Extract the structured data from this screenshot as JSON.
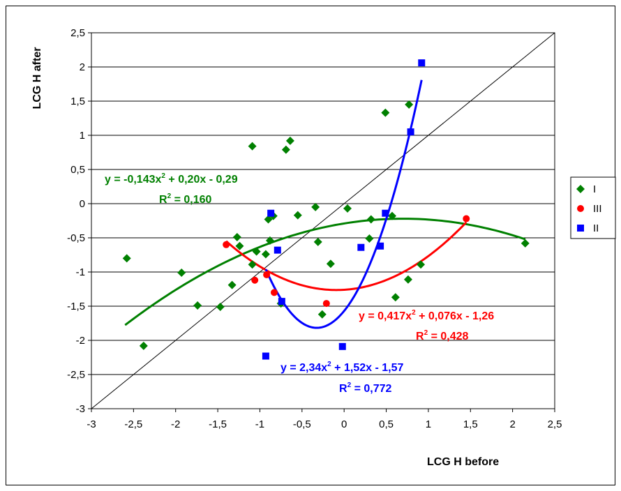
{
  "chart_data": {
    "type": "scatter",
    "title": "",
    "xlabel": "LCG H before",
    "ylabel": "LCG H after",
    "xlim": [
      -3,
      2.5
    ],
    "ylim": [
      -3,
      2.5
    ],
    "x_ticks": [
      "-3",
      "-2,5",
      "-2",
      "-1,5",
      "-1",
      "-0,5",
      "0",
      "0,5",
      "1",
      "1,5",
      "2",
      "2,5"
    ],
    "y_ticks": [
      "-3",
      "-2,5",
      "-2",
      "-1,5",
      "-1",
      "-0,5",
      "0",
      "0,5",
      "1",
      "1,5",
      "2",
      "2,5"
    ],
    "grid": "horizontal",
    "legend_position": "right",
    "diagonal_line": true,
    "series": [
      {
        "name": "I",
        "color": "#008000",
        "marker": "diamond",
        "points": [
          [
            -2.58,
            -0.8
          ],
          [
            -2.38,
            -2.08
          ],
          [
            -1.93,
            -1.01
          ],
          [
            -1.74,
            -1.49
          ],
          [
            -1.47,
            -1.51
          ],
          [
            -1.33,
            -1.19
          ],
          [
            -1.27,
            -0.49
          ],
          [
            -1.24,
            -0.62
          ],
          [
            -1.09,
            -0.89
          ],
          [
            -1.04,
            -0.7
          ],
          [
            -1.09,
            0.84
          ],
          [
            -0.93,
            -0.74
          ],
          [
            -0.9,
            -0.23
          ],
          [
            -0.88,
            -0.54
          ],
          [
            -0.84,
            -0.18
          ],
          [
            -0.75,
            -1.46
          ],
          [
            -0.69,
            0.79
          ],
          [
            -0.64,
            0.92
          ],
          [
            -0.55,
            -0.17
          ],
          [
            -0.34,
            -0.05
          ],
          [
            -0.31,
            -0.56
          ],
          [
            -0.26,
            -1.62
          ],
          [
            -0.16,
            -0.88
          ],
          [
            0.04,
            -0.07
          ],
          [
            0.3,
            -0.51
          ],
          [
            0.32,
            -0.23
          ],
          [
            0.49,
            1.33
          ],
          [
            0.57,
            -0.18
          ],
          [
            0.61,
            -1.37
          ],
          [
            0.76,
            -1.11
          ],
          [
            0.77,
            1.45
          ],
          [
            0.91,
            -0.89
          ],
          [
            2.15,
            -0.58
          ]
        ],
        "trendline": {
          "type": "poly2",
          "coef": [
            -0.143,
            0.2,
            -0.29
          ],
          "x_range": [
            -2.6,
            2.15
          ],
          "equation_text": "y = -0,143x² + 0,20x - 0,29",
          "r2_text": "R² = 0,160"
        }
      },
      {
        "name": "III",
        "color": "#ff0000",
        "marker": "circle",
        "points": [
          [
            -1.4,
            -0.6
          ],
          [
            -1.06,
            -1.12
          ],
          [
            -0.92,
            -1.04
          ],
          [
            -0.83,
            -1.3
          ],
          [
            -0.21,
            -1.46
          ],
          [
            1.45,
            -0.22
          ]
        ],
        "trendline": {
          "type": "poly2",
          "coef": [
            0.417,
            0.076,
            -1.26
          ],
          "x_range": [
            -1.4,
            1.45
          ],
          "equation_text": "y = 0,417x² + 0,076x - 1,26",
          "r2_text": "R² = 0,428"
        }
      },
      {
        "name": "II",
        "color": "#0000ff",
        "marker": "square",
        "points": [
          [
            -0.93,
            -2.23
          ],
          [
            -0.87,
            -0.14
          ],
          [
            -0.79,
            -0.68
          ],
          [
            -0.74,
            -1.43
          ],
          [
            -0.02,
            -2.09
          ],
          [
            0.2,
            -0.64
          ],
          [
            0.43,
            -0.62
          ],
          [
            0.49,
            -0.14
          ],
          [
            0.79,
            1.05
          ],
          [
            0.92,
            2.06
          ]
        ],
        "trendline": {
          "type": "poly2",
          "coef": [
            2.34,
            1.52,
            -1.57
          ],
          "x_range": [
            -0.93,
            0.92
          ],
          "equation_text": "y = 2,34x² + 1,52x - 1,57",
          "r2_text": "R² = 0,772"
        }
      }
    ]
  },
  "annotations": {
    "green_eq": "y = -0,143x",
    "green_eq_rest": " + 0,20x - 0,29",
    "green_r2": "R",
    "green_r2_rest": " = 0,160",
    "red_eq": "y = 0,417x",
    "red_eq_rest": " + 0,076x - 1,26",
    "red_r2": "R",
    "red_r2_rest": " = 0,428",
    "blue_eq": "y = 2,34x",
    "blue_eq_rest": " + 1,52x - 1,57",
    "blue_r2": "R",
    "blue_r2_rest": " = 0,772",
    "sup": "2"
  }
}
